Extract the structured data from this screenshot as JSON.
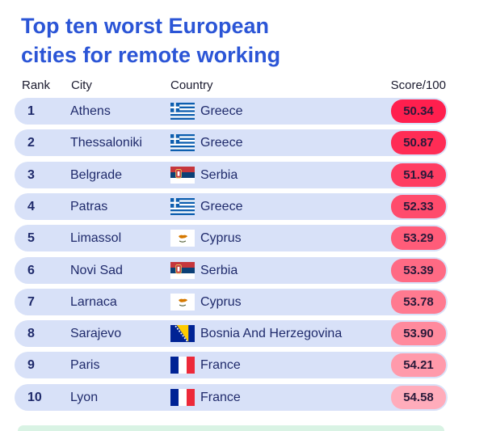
{
  "title": {
    "line1": "Top ten worst European",
    "line2": "cities for remote working"
  },
  "columns": {
    "rank": "Rank",
    "city": "City",
    "country": "Country",
    "score": "Score/100"
  },
  "rows": [
    {
      "rank": "1",
      "city": "Athens",
      "country": "Greece",
      "flag": "greece-flag-icon",
      "score": "50.34",
      "score_color": "#ff1f4e"
    },
    {
      "rank": "2",
      "city": "Thessaloniki",
      "country": "Greece",
      "flag": "greece-flag-icon",
      "score": "50.87",
      "score_color": "#ff2c55"
    },
    {
      "rank": "3",
      "city": "Belgrade",
      "country": "Serbia",
      "flag": "serbia-flag-icon",
      "score": "51.94",
      "score_color": "#ff3d62"
    },
    {
      "rank": "4",
      "city": "Patras",
      "country": "Greece",
      "flag": "greece-flag-icon",
      "score": "52.33",
      "score_color": "#ff4b6c"
    },
    {
      "rank": "5",
      "city": "Limassol",
      "country": "Cyprus",
      "flag": "cyprus-flag-icon",
      "score": "53.29",
      "score_color": "#ff5c79"
    },
    {
      "rank": "6",
      "city": "Novi Sad",
      "country": "Serbia",
      "flag": "serbia-flag-icon",
      "score": "53.39",
      "score_color": "#ff6a84"
    },
    {
      "rank": "7",
      "city": "Larnaca",
      "country": "Cyprus",
      "flag": "cyprus-flag-icon",
      "score": "53.78",
      "score_color": "#ff7a90"
    },
    {
      "rank": "8",
      "city": "Sarajevo",
      "country": "Bosnia And Herzegovina",
      "flag": "bosnia-flag-icon",
      "score": "53.90",
      "score_color": "#ff8a9d"
    },
    {
      "rank": "9",
      "city": "Paris",
      "country": "France",
      "flag": "france-flag-icon",
      "score": "54.21",
      "score_color": "#ff9aab"
    },
    {
      "rank": "10",
      "city": "Lyon",
      "country": "France",
      "flag": "france-flag-icon",
      "score": "54.58",
      "score_color": "#ffacbb"
    }
  ],
  "colors": {
    "title": "#2b55d6",
    "row_background": "#d8e1f8",
    "text": "#1f2a6b"
  }
}
